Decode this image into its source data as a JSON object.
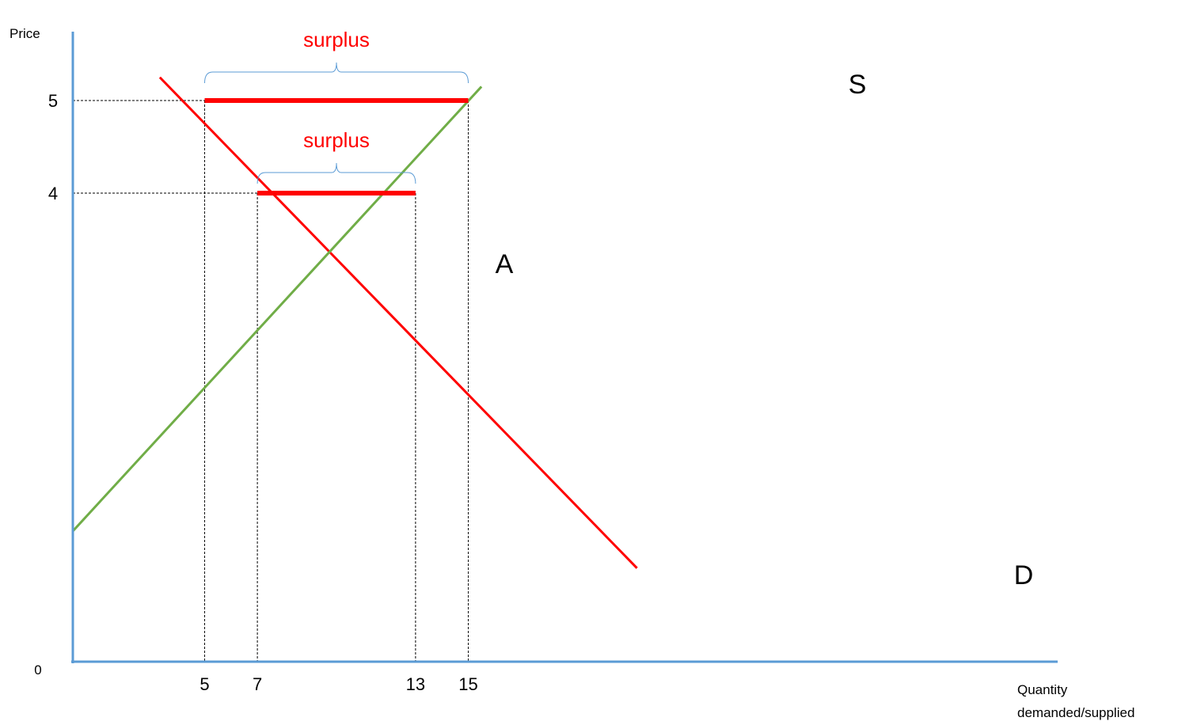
{
  "colors": {
    "axis": "#5b9bd5",
    "demand": "#ff0000",
    "supply": "#70ad47",
    "surplus": "#ff0000",
    "guide": "#000000",
    "text": "#000000"
  },
  "chart_data": {
    "type": "line",
    "title": "",
    "xlabel": "Quantity demanded/supplied",
    "xlabel_lines": [
      "Quantity",
      "demanded/supplied"
    ],
    "ylabel": "Price",
    "origin_label": "0",
    "xticks": [
      5,
      7,
      13,
      15
    ],
    "yticks": [
      4,
      5
    ],
    "xlim": [
      0,
      22
    ],
    "series": [
      {
        "name": "D",
        "role": "demand",
        "x": [
          3.3,
          21.4
        ],
        "y": [
          5.25,
          -0.05
        ]
      },
      {
        "name": "S",
        "role": "supply",
        "x": [
          0,
          15.5
        ],
        "y": [
          0.35,
          5.15
        ]
      }
    ],
    "point_label": {
      "text": "A",
      "x": 10.0,
      "y": 3.3
    },
    "surplus": [
      {
        "label": "surplus",
        "price": 5,
        "qd": 5,
        "qs": 15
      },
      {
        "label": "surplus",
        "price": 4,
        "qd": 7,
        "qs": 13
      }
    ]
  }
}
